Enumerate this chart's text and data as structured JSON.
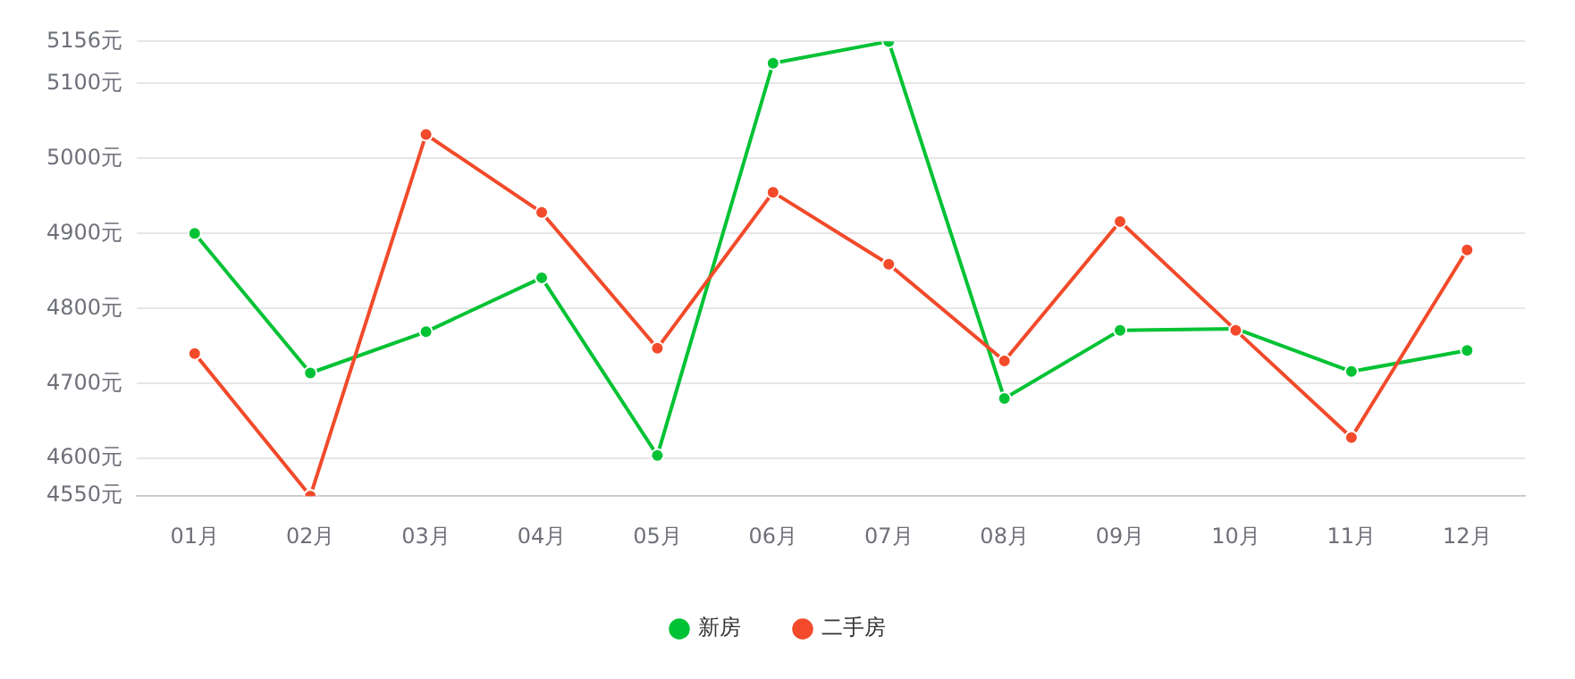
{
  "chart_data": {
    "type": "line",
    "categories": [
      "01月",
      "02月",
      "03月",
      "04月",
      "05月",
      "06月",
      "07月",
      "08月",
      "09月",
      "10月",
      "11月",
      "12月"
    ],
    "series": [
      {
        "name": "新房",
        "color": "#00c234",
        "values": [
          4900,
          4714,
          4769,
          4841,
          4604,
          5127,
          5156,
          4680,
          4771,
          4773,
          4716,
          4744
        ]
      },
      {
        "name": "二手房",
        "color": "#f24a2a",
        "values": [
          4740,
          4550,
          5032,
          4928,
          4747,
          4955,
          4859,
          4730,
          4916,
          4771,
          4628,
          4878
        ]
      }
    ],
    "ylim": [
      4550,
      5156
    ],
    "yticks": [
      {
        "value": 4550,
        "label": "4550元"
      },
      {
        "value": 4600,
        "label": "4600元"
      },
      {
        "value": 4700,
        "label": "4700元"
      },
      {
        "value": 4800,
        "label": "4800元"
      },
      {
        "value": 4900,
        "label": "4900元"
      },
      {
        "value": 5000,
        "label": "5000元"
      },
      {
        "value": 5100,
        "label": "5100元"
      },
      {
        "value": 5156,
        "label": "5156元"
      }
    ],
    "grid": "y",
    "legend": "bottom",
    "marker": "circle",
    "line_style": "solid"
  }
}
